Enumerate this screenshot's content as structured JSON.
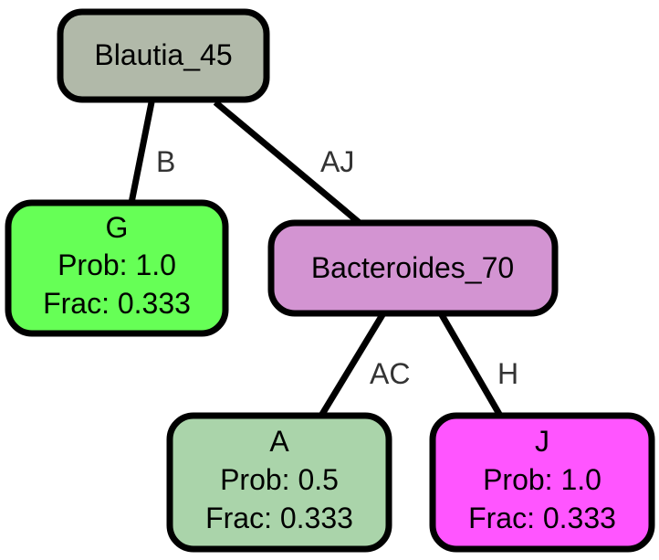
{
  "tree": {
    "nodes": {
      "root": {
        "name": "Blautia_45",
        "color": "#b1b9a9"
      },
      "g": {
        "name": "G",
        "prob": "Prob: 1.0",
        "frac": "Frac: 0.333",
        "color": "#66ff56"
      },
      "bacteroides": {
        "name": "Bacteroides_70",
        "color": "#d394d2"
      },
      "a": {
        "name": "A",
        "prob": "Prob: 0.5",
        "frac": "Frac: 0.333",
        "color": "#aad4aa"
      },
      "j": {
        "name": "J",
        "prob": "Prob: 1.0",
        "frac": "Frac: 0.333",
        "color": "#ff55ff"
      }
    },
    "edges": {
      "root_g": {
        "label": "B"
      },
      "root_bacteroides": {
        "label": "AJ"
      },
      "bacteroides_a": {
        "label": "AC"
      },
      "bacteroides_j": {
        "label": "H"
      }
    }
  }
}
